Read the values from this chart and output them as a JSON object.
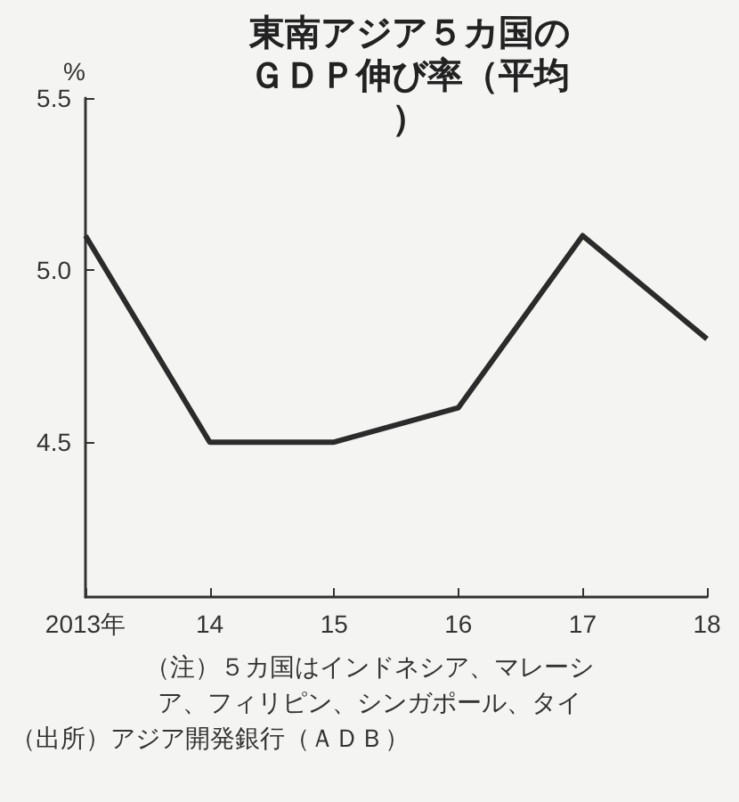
{
  "chart_data": {
    "type": "line",
    "title": "東南アジア５カ国のＧＤＰ伸び率（平均）",
    "ylabel": "%",
    "categories": [
      "2013年",
      "14",
      "15",
      "16",
      "17",
      "18"
    ],
    "series": [
      {
        "color": "#2b2b2b",
        "values": [
          5.1,
          4.5,
          4.5,
          4.6,
          5.1,
          4.8
        ]
      }
    ],
    "ylim": [
      4.05,
      5.5
    ],
    "yticks": [
      {
        "value": 4.5,
        "label": "4.5"
      },
      {
        "value": 5,
        "label": "5.0"
      },
      {
        "value": 5.5,
        "label": "5.5"
      }
    ],
    "grid": false,
    "marker": "none",
    "line_style": "solid",
    "annotations": [
      "（注）５カ国はインドネシア、マレーシア、フィリピン、シンガポール、タイ",
      "（出所）アジア開発銀行（ＡＤＢ）"
    ]
  }
}
